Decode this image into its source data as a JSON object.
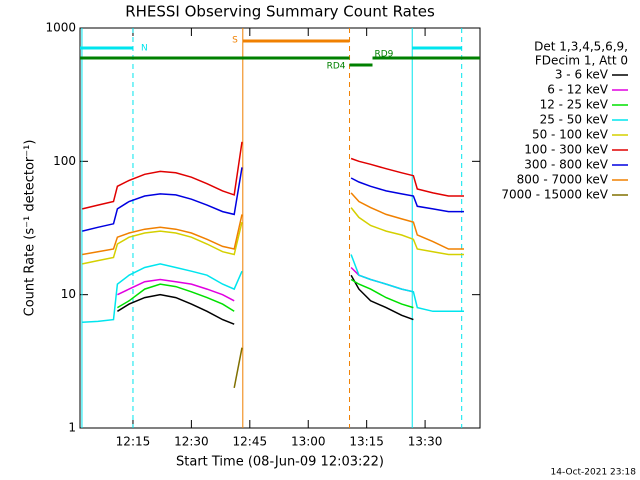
{
  "chart_data": {
    "type": "line",
    "title": "RHESSI Observing Summary Count Rates",
    "x_label": "Start Time (08-Jun-09 12:03:22)",
    "y_label": "Count Rate (s⁻¹ detector⁻¹)",
    "legend_header": [
      "Det 1,3,4,5,6,9,",
      "FDecim 1, Att 0"
    ],
    "footer": "14-Oct-2021 23:18",
    "log_y": true,
    "xlim": [
      721.4,
      824.1
    ],
    "xticks": [
      {
        "value": 735,
        "label": "12:15"
      },
      {
        "value": 750,
        "label": "12:30"
      },
      {
        "value": 765,
        "label": "12:45"
      },
      {
        "value": 780,
        "label": "13:00"
      },
      {
        "value": 795,
        "label": "13:15"
      },
      {
        "value": 810,
        "label": "13:30"
      }
    ],
    "ylim": [
      1,
      1000
    ],
    "yticks": [
      1,
      10,
      100,
      1000
    ],
    "x": [
      722,
      726,
      730,
      731,
      734,
      738,
      742,
      746,
      750,
      754,
      758,
      761,
      763,
      777,
      791,
      793,
      796,
      800,
      804,
      807,
      808,
      812,
      816,
      820
    ],
    "series": [
      {
        "name": "3 - 6 keV",
        "color": "#000000",
        "values": [
          null,
          null,
          null,
          7.5,
          8.5,
          9.5,
          10,
          9.5,
          8.5,
          7.5,
          6.5,
          6,
          null,
          null,
          14,
          11,
          9,
          8,
          7,
          6.5,
          null,
          null,
          null,
          null
        ]
      },
      {
        "name": "6 - 12 keV",
        "color": "#e000e0",
        "values": [
          null,
          null,
          null,
          10,
          11,
          12.5,
          13,
          12.5,
          12,
          11,
          10,
          9,
          null,
          null,
          16,
          14,
          13,
          12,
          11,
          10.5,
          null,
          null,
          null,
          null
        ]
      },
      {
        "name": "12 - 25 keV",
        "color": "#00e000",
        "values": [
          null,
          null,
          null,
          8,
          9,
          11,
          12,
          11.5,
          10.5,
          9.5,
          8.5,
          7.5,
          null,
          null,
          13,
          12,
          11,
          9.5,
          8.5,
          8,
          null,
          null,
          null,
          null
        ]
      },
      {
        "name": "25 - 50 keV",
        "color": "#00e5ee",
        "values": [
          6.2,
          6.3,
          6.5,
          12,
          14,
          16,
          17,
          16,
          15,
          14,
          12,
          11,
          15,
          null,
          20,
          14,
          13,
          12,
          11,
          10.5,
          8,
          7.5,
          7.5,
          7.5
        ]
      },
      {
        "name": "50 - 100 keV",
        "color": "#d4d000",
        "values": [
          17,
          18,
          19,
          24,
          27,
          29,
          30,
          29,
          27,
          24,
          21,
          20,
          35,
          null,
          45,
          38,
          33,
          30,
          28,
          26,
          22,
          21,
          20,
          20
        ]
      },
      {
        "name": "100 - 300 keV",
        "color": "#e00000",
        "values": [
          44,
          47,
          50,
          65,
          72,
          80,
          84,
          82,
          76,
          68,
          60,
          56,
          140,
          null,
          105,
          100,
          95,
          88,
          82,
          78,
          62,
          58,
          55,
          55
        ]
      },
      {
        "name": "300 - 800 keV",
        "color": "#0000e0",
        "values": [
          30,
          32,
          34,
          44,
          50,
          55,
          57,
          56,
          52,
          47,
          42,
          40,
          90,
          null,
          75,
          70,
          65,
          60,
          57,
          55,
          46,
          44,
          42,
          42
        ]
      },
      {
        "name": "800 - 7000 keV",
        "color": "#f08000",
        "values": [
          20,
          21,
          22,
          27,
          29,
          31,
          32,
          31,
          29,
          26,
          23,
          22,
          40,
          null,
          58,
          50,
          45,
          40,
          37,
          35,
          28,
          25,
          22,
          22
        ]
      },
      {
        "name": "7000 - 15000 keV",
        "color": "#807000",
        "values": [
          null,
          null,
          null,
          null,
          null,
          null,
          null,
          null,
          null,
          null,
          null,
          2,
          4,
          null,
          null,
          null,
          null,
          null,
          null,
          null,
          null,
          null,
          null,
          null
        ]
      }
    ],
    "flags": [
      {
        "label": "N",
        "color": "#00e5ee",
        "start": 721.4,
        "end": 735
      },
      {
        "label": null,
        "color": "#00e5ee",
        "start": 806.7,
        "end": 819.4
      },
      {
        "label": "S",
        "color": "#f08000",
        "start": 763.2,
        "end": 790.6
      },
      {
        "label": null,
        "color": "#008000",
        "start": 721.4,
        "end": 790.6
      },
      {
        "label": "RD4",
        "color": "#008000",
        "start": 790.6,
        "end": 796.5
      },
      {
        "label": "RD9",
        "color": "#008000",
        "start": 796.5,
        "end": 824.1
      }
    ],
    "markers": [
      {
        "x": 721.9,
        "color": "#00e5ee",
        "dashed": false
      },
      {
        "x": 735,
        "color": "#00e5ee",
        "dashed": true
      },
      {
        "x": 806.7,
        "color": "#00e5ee",
        "dashed": false
      },
      {
        "x": 819.4,
        "color": "#00e5ee",
        "dashed": true
      },
      {
        "x": 763.2,
        "color": "#f08000",
        "dashed": false
      },
      {
        "x": 790.6,
        "color": "#f08000",
        "dashed": true
      }
    ]
  }
}
